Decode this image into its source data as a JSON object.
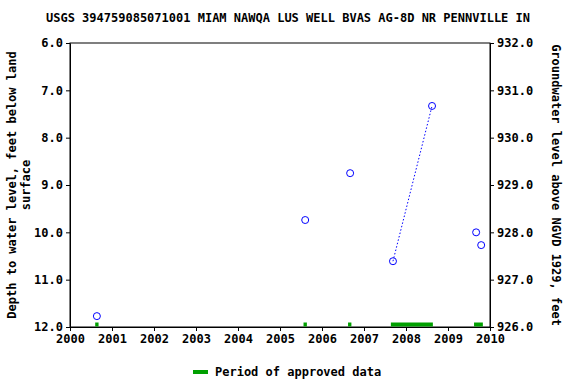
{
  "chart_data": {
    "type": "scatter",
    "title": "USGS 394759085071001 MIAM NAWQA LUS WELL BVAS AG-8D NR PENNVILLE IN",
    "y_label": [
      "Depth to water level, feet below land",
      "surface"
    ],
    "y2_label": "Groundwater level above NGVD 1929, feet",
    "xlim": [
      2000,
      2010
    ],
    "xticks": [
      2000,
      2001,
      2002,
      2003,
      2004,
      2005,
      2006,
      2007,
      2008,
      2009,
      2010
    ],
    "ylim": [
      12,
      6
    ],
    "yticks": [
      {
        "value": 6,
        "label": "6.0"
      },
      {
        "value": 7,
        "label": "7.0"
      },
      {
        "value": 8,
        "label": "8.0"
      },
      {
        "value": 9,
        "label": "9.0"
      },
      {
        "value": 10,
        "label": "10.0"
      },
      {
        "value": 11,
        "label": "11.0"
      },
      {
        "value": 12,
        "label": "12.0"
      }
    ],
    "y2lim": [
      926,
      932
    ],
    "y2ticks": [
      {
        "value": 926,
        "label": "926.0"
      },
      {
        "value": 927,
        "label": "927.0"
      },
      {
        "value": 928,
        "label": "928.0"
      },
      {
        "value": 929,
        "label": "929.0"
      },
      {
        "value": 930,
        "label": "930.0"
      },
      {
        "value": 931,
        "label": "931.0"
      },
      {
        "value": 932,
        "label": "932.0"
      }
    ],
    "series": [
      {
        "color": "#0000ff",
        "marker": "circle-open",
        "line_style": "none",
        "x": [
          2000.64,
          2005.6,
          2006.67,
          2007.69,
          2008.62,
          2009.67,
          2009.79
        ],
        "values": [
          11.77,
          9.74,
          8.75,
          10.61,
          7.33,
          10.0,
          10.27
        ]
      },
      {
        "color": "#0000ff",
        "marker": "none",
        "line_style": "dotted",
        "x": [
          2007.69,
          2008.62
        ],
        "values": [
          10.61,
          7.33
        ]
      }
    ],
    "approved_periods": {
      "name": "Period of approved data",
      "color": "#00a000",
      "ranges": [
        [
          2000.6,
          2000.68
        ],
        [
          2005.56,
          2005.64
        ],
        [
          2006.62,
          2006.7
        ],
        [
          2007.64,
          2008.64
        ],
        [
          2009.62,
          2009.83
        ]
      ]
    },
    "legend": "bottom"
  }
}
